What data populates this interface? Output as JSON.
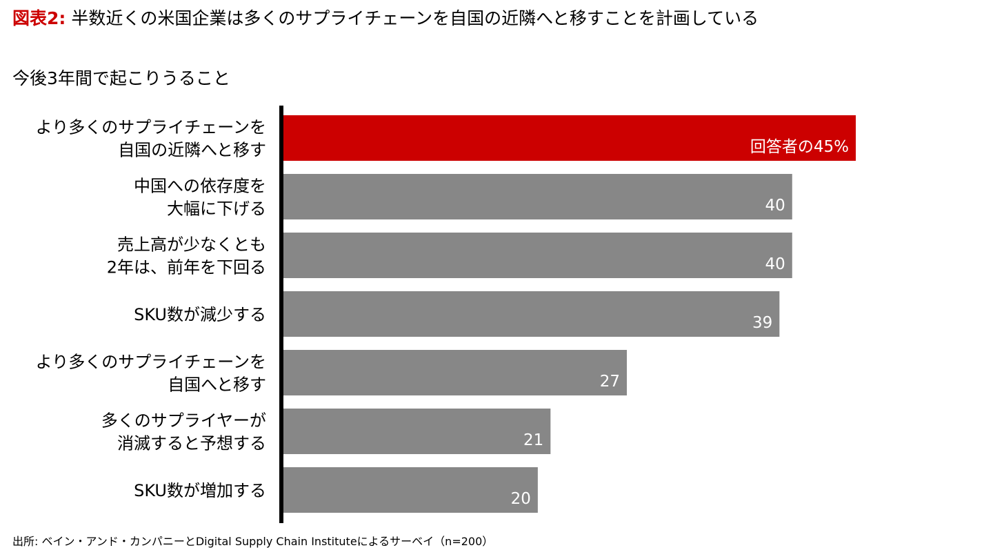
{
  "title": {
    "prefix": "図表2:",
    "text": "半数近くの米国企業は多くのサプライチェーンを自国の近隣へと移すことを計画している"
  },
  "subtitle": "今後3年間で起こりうること",
  "source": "出所: ベイン・アンド・カンパニーとDigital Supply Chain Instituteによるサーベイ（n=200）",
  "chart_data": {
    "type": "bar",
    "orientation": "horizontal",
    "categories": [
      [
        "より多くのサプライチェーンを",
        "自国の近隣へと移す"
      ],
      [
        "中国への依存度を",
        "大幅に下げる"
      ],
      [
        "売上高が少なくとも",
        "2年は、前年を下回る"
      ],
      [
        "SKU数が減少する"
      ],
      [
        "より多くのサプライチェーンを",
        "自国へと移す"
      ],
      [
        "多くのサプライヤーが",
        "消滅すると予想する"
      ],
      [
        "SKU数が増加する"
      ]
    ],
    "values": [
      45,
      40,
      40,
      39,
      27,
      21,
      20
    ],
    "value_labels": [
      "回答者の45%",
      "40",
      "40",
      "39",
      "27",
      "21",
      "20"
    ],
    "xlim": [
      0,
      45
    ],
    "grid": false,
    "colors": {
      "highlight": "#cc0000",
      "default": "#878787",
      "axis": "#000000",
      "label_text": "#ffffff"
    }
  }
}
